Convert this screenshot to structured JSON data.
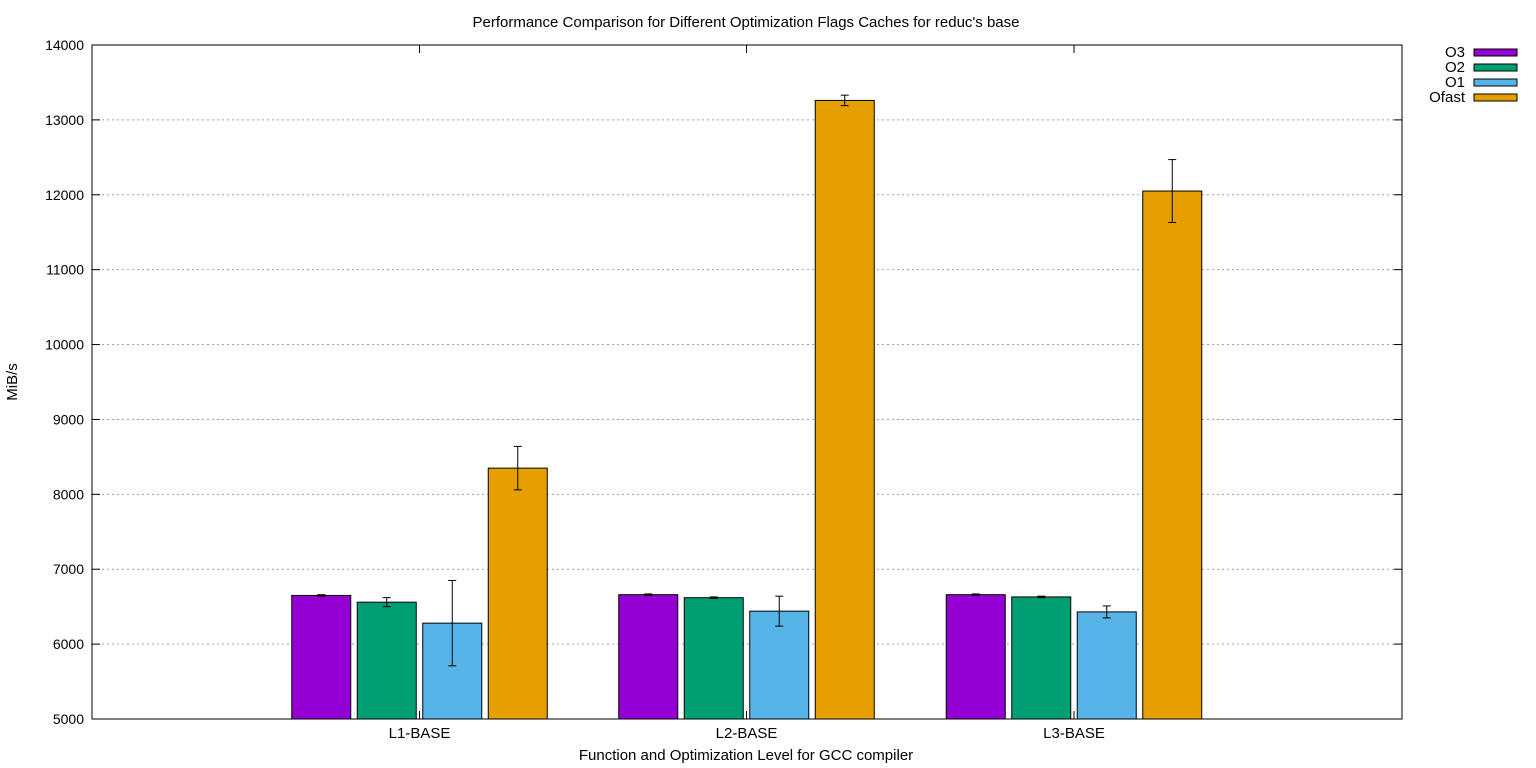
{
  "chart_data": {
    "type": "bar",
    "title": "Performance Comparison for Different Optimization Flags  Caches for reduc's base",
    "xlabel": "Function and Optimization Level for GCC compiler",
    "ylabel": "MiB/s",
    "ylim": [
      5000,
      14000
    ],
    "yticks": [
      5000,
      6000,
      7000,
      8000,
      9000,
      10000,
      11000,
      12000,
      13000,
      14000
    ],
    "grid": true,
    "legend_position": "top-right outside",
    "categories": [
      "L1-BASE",
      "L2-BASE",
      "L3-BASE"
    ],
    "series": [
      {
        "name": "O3",
        "color": "#9400d3",
        "values": [
          6650,
          6660,
          6660
        ],
        "errors": [
          10,
          10,
          10
        ]
      },
      {
        "name": "O2",
        "color": "#009e73",
        "values": [
          6560,
          6620,
          6630
        ],
        "errors": [
          60,
          10,
          10
        ]
      },
      {
        "name": "O1",
        "color": "#56b4e9",
        "values": [
          6280,
          6440,
          6430
        ],
        "errors": [
          570,
          200,
          80
        ]
      },
      {
        "name": "Ofast",
        "color": "#e69f00",
        "values": [
          8350,
          13260,
          12050
        ],
        "errors": [
          290,
          70,
          420
        ]
      }
    ]
  }
}
